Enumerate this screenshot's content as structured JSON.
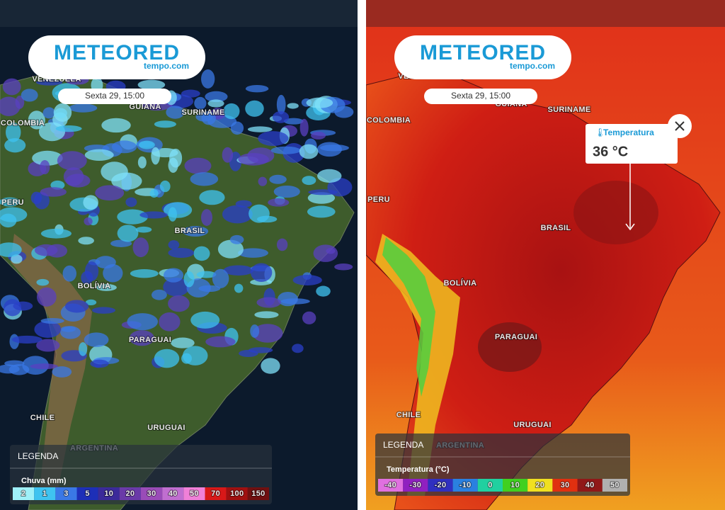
{
  "panels": [
    {
      "logo": {
        "brand": "METEORED",
        "site": "tempo.com"
      },
      "date": "Sexta 29, 15:00",
      "labels": [
        "VENEZUELA",
        "GUIANA",
        "SURINAME",
        "COLOMBIA",
        "PERU",
        "BRASIL",
        "BOLÍVIA",
        "PARAGUAI",
        "CHILE",
        "URUGUAI",
        "ARGENTINA"
      ],
      "legend": {
        "heading": "LEGENDA",
        "title": "Chuva (mm)",
        "scale": [
          2,
          1,
          3,
          5,
          10,
          20,
          30,
          40,
          50,
          70,
          100,
          150
        ],
        "colors": [
          "#9ff0f8",
          "#3fc3f0",
          "#3a78e6",
          "#1d2fb8",
          "#3b2a9a",
          "#6a3aa8",
          "#9a4cb8",
          "#c06ed0",
          "#f080d8",
          "#d81818",
          "#a01010",
          "#701010"
        ]
      }
    },
    {
      "logo": {
        "brand": "METEORED",
        "site": "tempo.com"
      },
      "date": "Sexta 29, 15:00",
      "labels": [
        "VENEZUELA",
        "GUIANA",
        "SURINAME",
        "COLOMBIA",
        "PERU",
        "BRASIL",
        "BOLÍVIA",
        "PARAGUAI",
        "CHILE",
        "URUGUAI",
        "ARGENTINA"
      ],
      "legend": {
        "heading": "LEGENDA",
        "title": "Temperatura (°C)",
        "scale": [
          -40,
          -30,
          -20,
          -10,
          0,
          10,
          20,
          30,
          40,
          50
        ],
        "colors": [
          "#e070e0",
          "#9020c0",
          "#3030c0",
          "#2a80e0",
          "#20d0a0",
          "#40d020",
          "#f0e020",
          "#e03010",
          "#901818",
          "#b0b0b0"
        ]
      },
      "popup": {
        "title": "Temperatura",
        "value": "36 °C"
      }
    }
  ]
}
